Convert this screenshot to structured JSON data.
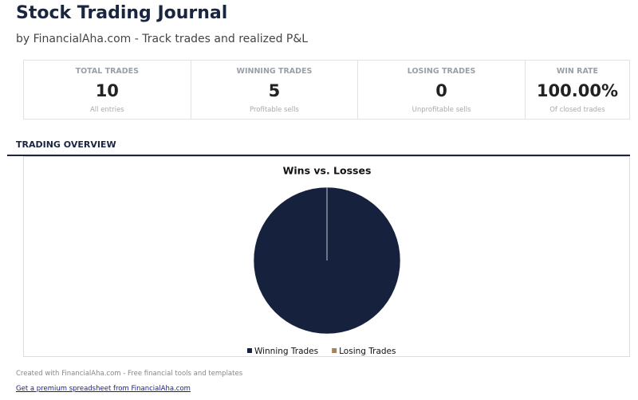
{
  "header": {
    "title": "Stock Trading Journal",
    "subtitle": "by FinancialAha.com - Track trades and realized P&L"
  },
  "cards": [
    {
      "label": "TOTAL TRADES",
      "value": "10",
      "note": "All entries"
    },
    {
      "label": "WINNING TRADES",
      "value": "5",
      "note": "Profitable sells"
    },
    {
      "label": "LOSING TRADES",
      "value": "0",
      "note": "Unprofitable sells"
    },
    {
      "label": "WIN RATE",
      "value": "100.00%",
      "note": "Of closed trades"
    }
  ],
  "section": {
    "title": "TRADING OVERVIEW"
  },
  "chart_data": {
    "type": "pie",
    "title": "Wins vs. Losses",
    "categories": [
      "Winning Trades",
      "Losing Trades"
    ],
    "values": [
      5,
      0
    ],
    "colors": [
      "#16213e",
      "#a8805e"
    ]
  },
  "footer": {
    "text": "Created with FinancialAha.com - Free financial tools and templates",
    "link": "Get a premium spreadsheet from FinancialAha.com"
  }
}
